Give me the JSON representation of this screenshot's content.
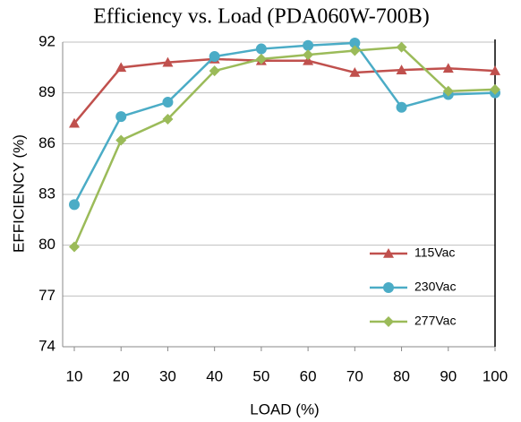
{
  "chart_data": {
    "type": "line",
    "title": "Efficiency vs. Load (PDA060W-700B)",
    "x_label": "LOAD (%)",
    "y_label": "EFFICIENCY (%)",
    "x": [
      10,
      20,
      30,
      40,
      50,
      60,
      70,
      80,
      90,
      100
    ],
    "series": [
      {
        "name": "115Vac",
        "color": "#c0504d",
        "marker": "triangle",
        "values": [
          87.2,
          90.5,
          90.8,
          91.0,
          90.9,
          90.9,
          90.2,
          90.35,
          90.45,
          90.3
        ]
      },
      {
        "name": "230Vac",
        "color": "#4bacc6",
        "marker": "circle",
        "values": [
          82.4,
          87.6,
          88.45,
          91.15,
          91.6,
          91.8,
          91.95,
          88.15,
          88.9,
          89.0
        ]
      },
      {
        "name": "277Vac",
        "color": "#9bbb59",
        "marker": "diamond",
        "values": [
          79.9,
          86.2,
          87.45,
          90.3,
          91.0,
          91.25,
          91.5,
          91.7,
          89.1,
          89.2
        ]
      }
    ],
    "xlim": [
      10,
      100
    ],
    "xticks": [
      10,
      20,
      30,
      40,
      50,
      60,
      70,
      80,
      90,
      100
    ],
    "ylim": [
      74,
      92
    ],
    "yticks": [
      74,
      77,
      80,
      83,
      86,
      89,
      92
    ],
    "grid": true,
    "legend": "lower right"
  }
}
